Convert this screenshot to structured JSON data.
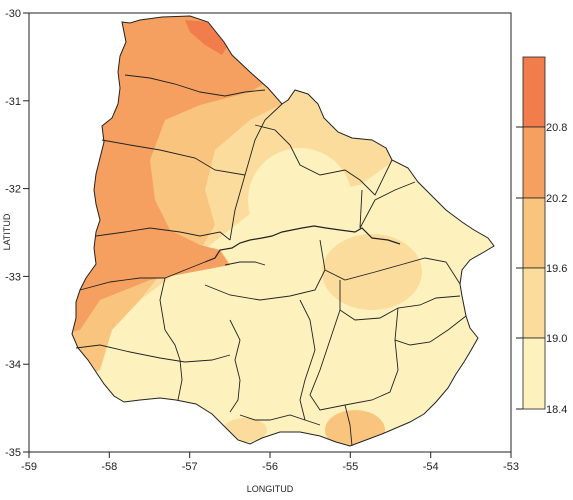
{
  "axes": {
    "xlabel": "LONGITUD",
    "ylabel": "LATITUD",
    "x_ticks": [
      "-59",
      "-58",
      "-57",
      "-56",
      "-55",
      "-54",
      "-53"
    ],
    "y_ticks": [
      "-30",
      "-31",
      "-32",
      "-33",
      "-34",
      "-35"
    ]
  },
  "legend": {
    "labels": [
      "20.8",
      "20.2",
      "19.6",
      "19.0",
      "18.4"
    ],
    "colors": [
      "#f07d4b",
      "#f5a060",
      "#f9c47e",
      "#fbdc9c",
      "#fdf1bd"
    ]
  },
  "chart_data": {
    "type": "heatmap",
    "xlabel": "LONGITUD",
    "ylabel": "LATITUD",
    "xlim": [
      -59,
      -53
    ],
    "ylim": [
      -35,
      -30
    ],
    "color_scale": {
      "levels": [
        18.4,
        19.0,
        19.6,
        20.2,
        20.8
      ],
      "colors": [
        "#fdf1bd",
        "#fbdc9c",
        "#f9c47e",
        "#f5a060",
        "#f07d4b"
      ]
    },
    "grid": false
  }
}
